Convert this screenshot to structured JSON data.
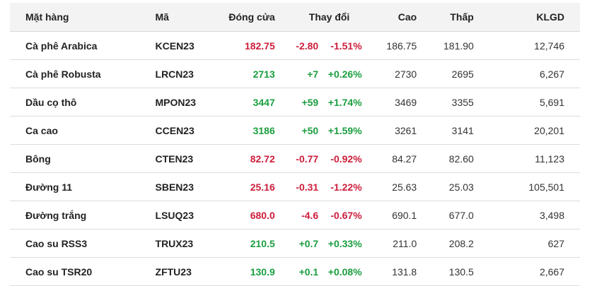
{
  "headers": {
    "item": "Mặt hàng",
    "code": "Mã",
    "close": "Đóng cửa",
    "change": "Thay đổi",
    "high": "Cao",
    "low": "Thấp",
    "volume": "KLGD"
  },
  "colors": {
    "down": "#cc1d3b",
    "up": "#1a9e3f"
  },
  "rows": [
    {
      "name": "Cà phê Arabica",
      "code": "KCEN23",
      "close": "182.75",
      "change": "-2.80",
      "pct": "-1.51%",
      "high": "186.75",
      "low": "181.90",
      "volume": "12,746",
      "trend": "dn"
    },
    {
      "name": "Cà phê Robusta",
      "code": "LRCN23",
      "close": "2713",
      "change": "+7",
      "pct": "+0.26%",
      "high": "2730",
      "low": "2695",
      "volume": "6,267",
      "trend": "up"
    },
    {
      "name": "Dầu cọ thô",
      "code": "MPON23",
      "close": "3447",
      "change": "+59",
      "pct": "+1.74%",
      "high": "3469",
      "low": "3355",
      "volume": "5,691",
      "trend": "up"
    },
    {
      "name": "Ca cao",
      "code": "CCEN23",
      "close": "3186",
      "change": "+50",
      "pct": "+1.59%",
      "high": "3261",
      "low": "3141",
      "volume": "20,201",
      "trend": "up"
    },
    {
      "name": "Bông",
      "code": "CTEN23",
      "close": "82.72",
      "change": "-0.77",
      "pct": "-0.92%",
      "high": "84.27",
      "low": "82.60",
      "volume": "11,123",
      "trend": "dn"
    },
    {
      "name": "Đường 11",
      "code": "SBEN23",
      "close": "25.16",
      "change": "-0.31",
      "pct": "-1.22%",
      "high": "25.63",
      "low": "25.03",
      "volume": "105,501",
      "trend": "dn"
    },
    {
      "name": "Đường trắng",
      "code": "LSUQ23",
      "close": "680.0",
      "change": "-4.6",
      "pct": "-0.67%",
      "high": "690.1",
      "low": "677.0",
      "volume": "3,498",
      "trend": "dn"
    },
    {
      "name": "Cao su RSS3",
      "code": "TRUX23",
      "close": "210.5",
      "change": "+0.7",
      "pct": "+0.33%",
      "high": "211.0",
      "low": "208.2",
      "volume": "627",
      "trend": "up"
    },
    {
      "name": "Cao su TSR20",
      "code": "ZFTU23",
      "close": "130.9",
      "change": "+0.1",
      "pct": "+0.08%",
      "high": "131.8",
      "low": "130.5",
      "volume": "2,667",
      "trend": "up"
    }
  ]
}
